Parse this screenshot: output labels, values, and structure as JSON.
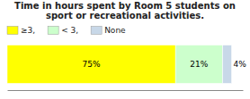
{
  "chart_data": {
    "type": "bar",
    "orientation": "horizontal",
    "stacked": true,
    "title": "Time in hours spent by Room 5 students on\nsport or recreational activities.",
    "categories": [
      null
    ],
    "series": [
      {
        "name": "≥3,",
        "color": "#FFFF00",
        "values": [
          75
        ],
        "value_labels": [
          "75%"
        ]
      },
      {
        "name": "< 3,",
        "color": "#CCFFCC",
        "values": [
          21
        ],
        "value_labels": [
          "21%"
        ]
      },
      {
        "name": "None",
        "color": "#C8D8E8",
        "values": [
          4
        ],
        "value_labels": [
          "4%"
        ]
      }
    ],
    "xlim": [
      0,
      105
    ],
    "data_labels": true,
    "tick_labels": false,
    "legend": "top-left",
    "grid": false
  }
}
